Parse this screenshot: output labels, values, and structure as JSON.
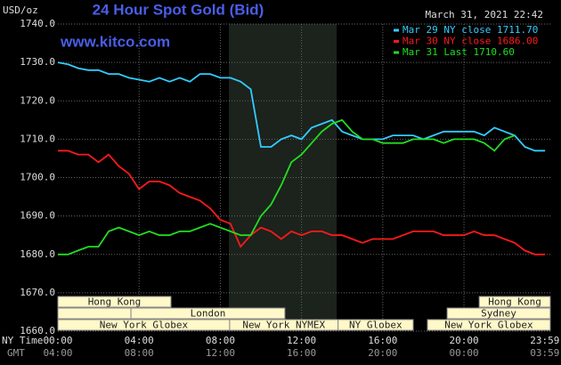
{
  "chart_data": {
    "type": "line",
    "title": "24 Hour Spot Gold (Bid)",
    "timestamp": "March 31, 2021 22:42",
    "y_label": "USD/oz",
    "watermark": "www.kitco.com",
    "x_row_labels": [
      "NY Time",
      "GMT"
    ],
    "x": [
      0,
      0.5,
      1,
      1.5,
      2,
      2.5,
      3,
      3.5,
      4,
      4.5,
      5,
      5.5,
      6,
      6.5,
      7,
      7.5,
      8,
      8.5,
      9,
      9.5,
      10,
      10.5,
      11,
      11.5,
      12,
      12.5,
      13,
      13.5,
      14,
      14.5,
      15,
      15.5,
      16,
      16.5,
      17,
      17.5,
      18,
      18.5,
      19,
      19.5,
      20,
      20.5,
      21,
      21.5,
      22,
      22.5,
      23,
      23.5,
      24
    ],
    "series": [
      {
        "name": "Mar 29 NY close 1711.70",
        "color": "#33ccff",
        "values": [
          1730,
          1729.5,
          1728.5,
          1728,
          1728,
          1727,
          1727,
          1726,
          1725.5,
          1725,
          1726,
          1725,
          1726,
          1725,
          1727,
          1727,
          1726,
          1726,
          1725,
          1723,
          1708,
          1708,
          1710,
          1711,
          1710,
          1713,
          1714,
          1715,
          1712,
          1711,
          1710,
          1710,
          1710,
          1711,
          1711,
          1711,
          1710,
          1711,
          1712,
          1712,
          1712,
          1712,
          1711,
          1713,
          1712,
          1711,
          1708,
          1707,
          1707
        ]
      },
      {
        "name": "Mar 30 NY close 1686.00",
        "color": "#ff1a1a",
        "values": [
          1707,
          1707,
          1706,
          1706,
          1704,
          1706,
          1703,
          1701,
          1697,
          1699,
          1699,
          1698,
          1696,
          1695,
          1694,
          1692,
          1689,
          1688,
          1682,
          1685,
          1687,
          1686,
          1684,
          1686,
          1685,
          1686,
          1686,
          1685,
          1685,
          1684,
          1683,
          1684,
          1684,
          1684,
          1685,
          1686,
          1686,
          1686,
          1685,
          1685,
          1685,
          1686,
          1685,
          1685,
          1684,
          1683,
          1681,
          1680,
          1680
        ]
      },
      {
        "name": "Mar 31 Last 1710.60",
        "color": "#22dd22",
        "values": [
          1680,
          1680,
          1681,
          1682,
          1682,
          1686,
          1687,
          1686,
          1685,
          1686,
          1685,
          1685,
          1686,
          1686,
          1687,
          1688,
          1687,
          1686,
          1685,
          1685,
          1690,
          1693,
          1698,
          1704,
          1706,
          1709,
          1712,
          1714,
          1715,
          1712,
          1710,
          1710,
          1709,
          1709,
          1709,
          1710,
          1710,
          1710,
          1709,
          1710,
          1710,
          1710,
          1709,
          1707,
          1710,
          1711,
          null,
          null,
          null
        ]
      }
    ],
    "xlim": [
      0,
      24.34
    ],
    "ylim": [
      1660,
      1740
    ],
    "yticks": [
      {
        "value": 1660,
        "label": "1660.0"
      },
      {
        "value": 1670,
        "label": "1670.0"
      },
      {
        "value": 1680,
        "label": "1680.0"
      },
      {
        "value": 1690,
        "label": "1690.0"
      },
      {
        "value": 1700,
        "label": "1700.0"
      },
      {
        "value": 1710,
        "label": "1710.0"
      },
      {
        "value": 1720,
        "label": "1720.0"
      },
      {
        "value": 1730,
        "label": "1730.0"
      },
      {
        "value": 1740,
        "label": "1740.0"
      }
    ],
    "xticks": [
      {
        "value": 0,
        "label": "00:00"
      },
      {
        "value": 4,
        "label": "04:00"
      },
      {
        "value": 8,
        "label": "08:00"
      },
      {
        "value": 12,
        "label": "12:00"
      },
      {
        "value": 16,
        "label": "16:00"
      },
      {
        "value": 20,
        "label": "20:00"
      },
      {
        "value": 23.98,
        "label": "23:59"
      }
    ],
    "xticks_gmt": [
      {
        "value": 0,
        "label": "04:00"
      },
      {
        "value": 4,
        "label": "08:00"
      },
      {
        "value": 8,
        "label": "12:00"
      },
      {
        "value": 12,
        "label": "16:00"
      },
      {
        "value": 16,
        "label": "20:00"
      },
      {
        "value": 20,
        "label": "00:00"
      },
      {
        "value": 23.98,
        "label": "03:59"
      }
    ],
    "grid": true,
    "shade": [
      8.42,
      13.73
    ],
    "sessions": [
      {
        "label": "Hong Kong",
        "start": 0,
        "end": 5.57,
        "row": 0
      },
      {
        "label": "Hong Kong",
        "start": 20.75,
        "end": 24.25,
        "row": 0
      },
      {
        "label": "London",
        "start": 3.6,
        "end": 11.18,
        "row": 1
      },
      {
        "label": "Sydney",
        "start": 19.17,
        "end": 24.25,
        "row": 1
      },
      {
        "label": "New York Globex",
        "start": 0,
        "end": 8.46,
        "row": 2
      },
      {
        "label": "New York NYMEX",
        "start": 8.46,
        "end": 13.8,
        "row": 2
      },
      {
        "label": "NY Globex",
        "start": 13.8,
        "end": 17.5,
        "row": 2
      },
      {
        "label": "New York Globex",
        "start": 18.2,
        "end": 24.25,
        "row": 2
      }
    ]
  }
}
